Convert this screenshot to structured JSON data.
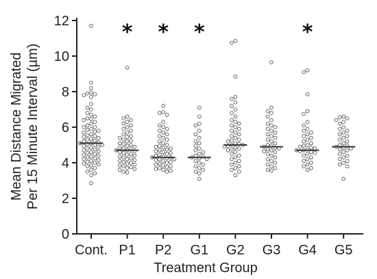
{
  "chart_data": {
    "type": "scatter",
    "subtype": "beeswarm",
    "title": "",
    "xlabel": "Treatment Group",
    "ylabel_lines": [
      "Mean Distance Migrated",
      "Per 15 Minute Interval (µm)"
    ],
    "ylim": [
      0,
      12
    ],
    "yticks": [
      0,
      2,
      4,
      6,
      8,
      10,
      12
    ],
    "grid": false,
    "legend": "none",
    "categories": [
      "Cont.",
      "P1",
      "P2",
      "G1",
      "G2",
      "G3",
      "G4",
      "G5"
    ],
    "significance_marker": "*",
    "significant": [
      "P1",
      "P2",
      "G1",
      "G4"
    ],
    "medians": [
      5.1,
      4.7,
      4.3,
      4.3,
      5.0,
      4.9,
      4.7,
      4.9
    ],
    "point_color": "#666666",
    "median_color": "#333333",
    "groups": [
      {
        "name": "Cont.",
        "values": [
          11.7,
          8.5,
          8.2,
          7.95,
          7.9,
          7.85,
          7.8,
          7.7,
          7.3,
          7.1,
          7.0,
          6.8,
          6.7,
          6.6,
          6.5,
          6.45,
          6.4,
          6.3,
          6.2,
          6.1,
          6.0,
          6.0,
          5.9,
          5.85,
          5.8,
          5.75,
          5.7,
          5.6,
          5.55,
          5.5,
          5.45,
          5.4,
          5.35,
          5.3,
          5.25,
          5.2,
          5.15,
          5.1,
          5.1,
          5.05,
          5.0,
          5.0,
          4.95,
          4.9,
          4.85,
          4.8,
          4.75,
          4.7,
          4.65,
          4.6,
          4.55,
          4.5,
          4.45,
          4.4,
          4.35,
          4.3,
          4.25,
          4.2,
          4.15,
          4.1,
          4.05,
          4.0,
          3.95,
          3.9,
          3.85,
          3.8,
          3.7,
          3.6,
          3.5,
          3.4,
          3.3,
          2.85
        ]
      },
      {
        "name": "P1",
        "values": [
          9.35,
          6.6,
          6.5,
          6.4,
          6.3,
          6.2,
          6.1,
          6.0,
          5.9,
          5.8,
          5.7,
          5.6,
          5.5,
          5.45,
          5.4,
          5.3,
          5.25,
          5.2,
          5.1,
          5.05,
          5.0,
          4.95,
          4.9,
          4.85,
          4.8,
          4.75,
          4.7,
          4.7,
          4.65,
          4.6,
          4.55,
          4.5,
          4.45,
          4.4,
          4.35,
          4.3,
          4.25,
          4.2,
          4.15,
          4.1,
          4.05,
          4.0,
          3.95,
          3.9,
          3.85,
          3.8,
          3.75,
          3.7,
          3.65,
          3.6,
          3.5,
          3.45
        ]
      },
      {
        "name": "P2",
        "values": [
          7.2,
          6.85,
          6.8,
          6.7,
          6.3,
          6.1,
          6.0,
          5.9,
          5.8,
          5.7,
          5.6,
          5.5,
          5.4,
          5.3,
          5.2,
          5.1,
          5.0,
          4.95,
          4.9,
          4.85,
          4.8,
          4.75,
          4.7,
          4.65,
          4.6,
          4.55,
          4.5,
          4.45,
          4.4,
          4.35,
          4.3,
          4.3,
          4.25,
          4.2,
          4.2,
          4.15,
          4.1,
          4.05,
          4.0,
          3.95,
          3.9,
          3.85,
          3.8,
          3.75,
          3.7,
          3.65,
          3.6,
          3.55,
          3.5
        ]
      },
      {
        "name": "G1",
        "values": [
          7.1,
          6.6,
          6.2,
          6.1,
          5.8,
          5.6,
          5.4,
          5.2,
          5.1,
          4.95,
          4.8,
          4.7,
          4.6,
          4.5,
          4.4,
          4.35,
          4.3,
          4.25,
          4.2,
          4.1,
          4.0,
          3.9,
          3.8,
          3.7,
          3.6,
          3.5,
          3.4,
          3.1
        ]
      },
      {
        "name": "G2",
        "values": [
          10.85,
          10.75,
          8.85,
          7.7,
          7.6,
          7.4,
          7.2,
          7.0,
          6.8,
          6.6,
          6.4,
          6.3,
          6.2,
          6.1,
          6.0,
          5.9,
          5.8,
          5.7,
          5.6,
          5.5,
          5.4,
          5.3,
          5.25,
          5.2,
          5.1,
          5.05,
          5.0,
          5.0,
          4.95,
          4.9,
          4.85,
          4.8,
          4.75,
          4.7,
          4.6,
          4.5,
          4.4,
          4.3,
          4.2,
          4.1,
          4.0,
          3.9,
          3.8,
          3.7,
          3.6,
          3.5,
          3.3
        ]
      },
      {
        "name": "G3",
        "values": [
          9.65,
          7.1,
          6.9,
          6.8,
          6.6,
          6.4,
          6.2,
          6.1,
          6.0,
          5.9,
          5.8,
          5.7,
          5.6,
          5.5,
          5.4,
          5.3,
          5.2,
          5.1,
          5.0,
          4.95,
          4.9,
          4.85,
          4.8,
          4.75,
          4.7,
          4.65,
          4.6,
          4.5,
          4.4,
          4.3,
          4.2,
          4.1,
          4.0,
          3.9,
          3.8,
          3.7,
          3.6,
          3.55
        ]
      },
      {
        "name": "G4",
        "values": [
          9.2,
          9.1,
          7.85,
          6.9,
          6.75,
          6.3,
          6.1,
          5.9,
          5.8,
          5.7,
          5.6,
          5.5,
          5.4,
          5.3,
          5.2,
          5.1,
          5.0,
          4.95,
          4.9,
          4.85,
          4.8,
          4.75,
          4.7,
          4.7,
          4.65,
          4.6,
          4.55,
          4.5,
          4.4,
          4.3,
          4.2,
          4.1,
          4.0,
          3.9,
          3.8,
          3.7,
          3.6
        ]
      },
      {
        "name": "G5",
        "values": [
          6.6,
          6.55,
          6.5,
          6.4,
          6.3,
          6.2,
          6.0,
          5.9,
          5.8,
          5.7,
          5.6,
          5.5,
          5.4,
          5.3,
          5.2,
          5.1,
          5.0,
          4.95,
          4.9,
          4.85,
          4.8,
          4.75,
          4.7,
          4.6,
          4.5,
          4.4,
          4.3,
          4.2,
          4.1,
          4.0,
          3.9,
          3.8,
          3.1
        ]
      }
    ]
  }
}
